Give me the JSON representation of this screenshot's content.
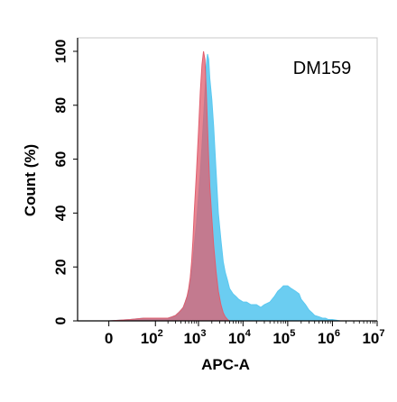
{
  "chart_data": {
    "type": "area",
    "xlabel": "APC-A",
    "ylabel": "Count  (%)",
    "xscale": "biexponential",
    "xlim": [
      -40,
      10000000
    ],
    "ylim": [
      0,
      105
    ],
    "annotation": "DM159",
    "grid": false,
    "y_ticks": [
      {
        "value": 0,
        "label": "0"
      },
      {
        "value": 20,
        "label": "20"
      },
      {
        "value": 40,
        "label": "40"
      },
      {
        "value": 60,
        "label": "60"
      },
      {
        "value": 80,
        "label": "80"
      },
      {
        "value": 100,
        "label": "100"
      }
    ],
    "x_ticks": [
      {
        "value": 0,
        "base": "0",
        "exp": ""
      },
      {
        "value": 100,
        "base": "10",
        "exp": "2"
      },
      {
        "value": 1000,
        "base": "10",
        "exp": "3"
      },
      {
        "value": 10000,
        "base": "10",
        "exp": "4"
      },
      {
        "value": 100000,
        "base": "10",
        "exp": "5"
      },
      {
        "value": 1000000,
        "base": "10",
        "exp": "6"
      },
      {
        "value": 10000000,
        "base": "10",
        "exp": "7"
      }
    ],
    "series": [
      {
        "color": "#5bc8f0",
        "x": [
          -40,
          -10,
          0,
          20,
          50,
          100,
          150,
          200,
          250,
          300,
          350,
          400,
          450,
          500,
          550,
          600,
          650,
          700,
          750,
          800,
          900,
          1000,
          1100,
          1200,
          1300,
          1400,
          1500,
          1600,
          1700,
          1800,
          2000,
          2200,
          2500,
          2800,
          3200,
          3600,
          4000,
          4500,
          5000,
          6000,
          7000,
          8000,
          10000,
          12000,
          15000,
          20000,
          25000,
          30000,
          40000,
          50000,
          60000,
          70000,
          80000,
          100000,
          120000,
          150000,
          180000,
          200000,
          250000,
          300000,
          350000,
          400000,
          500000,
          600000,
          700000,
          800000,
          1000000,
          1500000,
          2000000,
          3000000,
          5000000,
          10000000
        ],
        "values": [
          0,
          0,
          0,
          0.5,
          1,
          1,
          1,
          1,
          1.5,
          2,
          3,
          4,
          5,
          7,
          9,
          11,
          14,
          18,
          22,
          28,
          36,
          46,
          55,
          65,
          75,
          85,
          95,
          99,
          97,
          90,
          82,
          72,
          55,
          40,
          30,
          22,
          18,
          15,
          12,
          10,
          9,
          8,
          7,
          7,
          6,
          6,
          5,
          6,
          7,
          9,
          11,
          12,
          13,
          13,
          12,
          11,
          10,
          8,
          6,
          4,
          3,
          2,
          1.5,
          1,
          1,
          0.5,
          0.5,
          0,
          0,
          0,
          0,
          0
        ]
      },
      {
        "color": "#e05e6e",
        "x": [
          -40,
          -10,
          0,
          20,
          50,
          100,
          150,
          200,
          250,
          300,
          350,
          400,
          450,
          500,
          550,
          600,
          650,
          700,
          750,
          800,
          900,
          1000,
          1100,
          1200,
          1300,
          1400,
          1500,
          1600,
          1700,
          1800,
          2000,
          2200,
          2500,
          2800,
          3200,
          3600,
          4000,
          4500,
          5000,
          6000,
          8000,
          10000,
          10000000
        ],
        "values": [
          0,
          0,
          0,
          0.5,
          1,
          1,
          1,
          1,
          1.5,
          2,
          3,
          4,
          5,
          7,
          9,
          12,
          16,
          22,
          30,
          40,
          55,
          70,
          85,
          95,
          100,
          97,
          85,
          72,
          60,
          50,
          38,
          28,
          18,
          11,
          6,
          3,
          1.5,
          0.5,
          0,
          0,
          0,
          0,
          0
        ]
      }
    ]
  }
}
